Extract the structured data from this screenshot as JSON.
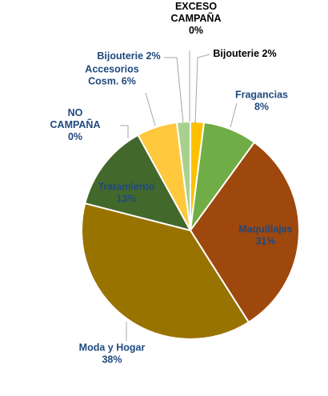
{
  "chart_data": {
    "type": "pie",
    "title": "",
    "slices": [
      {
        "label": [
          "Bijouterie 2%"
        ],
        "value": 2,
        "color": "#ffc000",
        "text_color": "#000000"
      },
      {
        "label": [
          "Fragancias",
          "8%"
        ],
        "value": 8,
        "color": "#70ad47",
        "text_color": "#1f497d"
      },
      {
        "label": [
          "Maquillajes",
          "31%"
        ],
        "value": 31,
        "color": "#9e480e",
        "text_color": "#1f497d"
      },
      {
        "label": [
          "Moda y Hogar",
          "38%"
        ],
        "value": 38,
        "color": "#997300",
        "text_color": "#1f497d"
      },
      {
        "label": [
          "Tratamiento",
          "13%"
        ],
        "value": 13,
        "color": "#43682b",
        "text_color": "#1f497d"
      },
      {
        "label": [
          "NO",
          "CAMPAÑA",
          "0%"
        ],
        "value": 0,
        "color": "#843c0c",
        "text_color": "#1f497d"
      },
      {
        "label": [
          "Accesorios",
          "Cosm. 6%"
        ],
        "value": 6,
        "color": "#ffc83d",
        "text_color": "#1f497d"
      },
      {
        "label": [
          "Bijouterie 2%"
        ],
        "value": 2,
        "color": "#a9d18e",
        "text_color": "#1f497d"
      },
      {
        "label": [
          "EXCESO",
          "CAMPAÑA",
          "0%"
        ],
        "value": 0,
        "color": "#d9d9d9",
        "text_color": "#000000"
      }
    ]
  }
}
